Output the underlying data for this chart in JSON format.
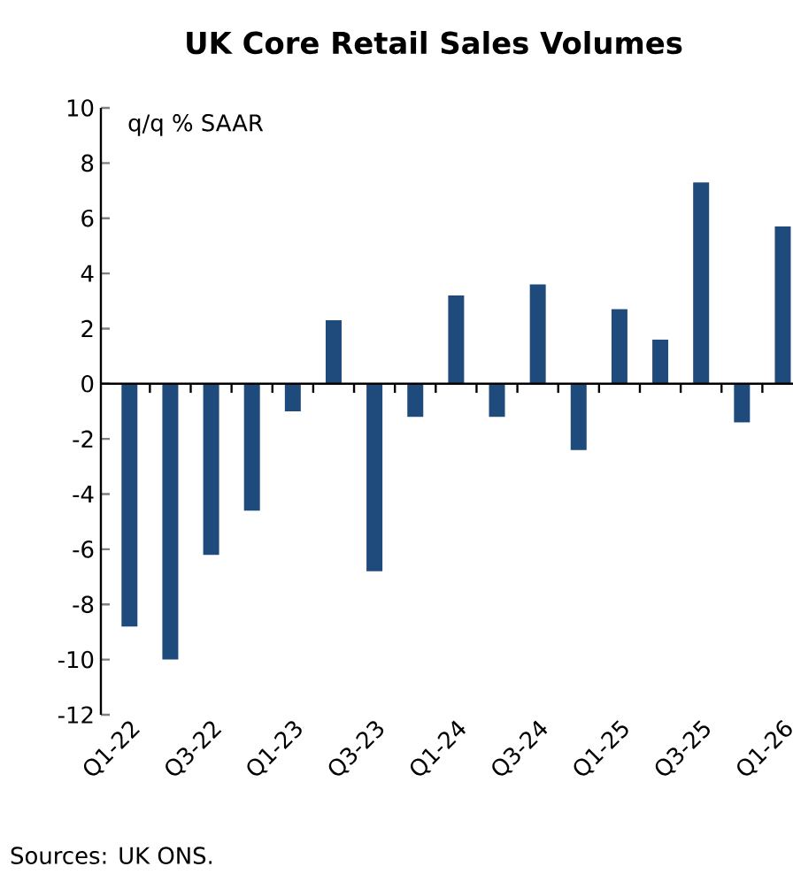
{
  "chart_data": {
    "type": "bar",
    "title": "UK Core Retail Sales Volumes",
    "ylabel": "q/q % SAAR",
    "categories": [
      "Q1-22",
      null,
      "Q3-22",
      null,
      "Q1-23",
      null,
      "Q3-23",
      null,
      "Q1-24",
      null,
      "Q3-24",
      null,
      "Q1-25",
      null,
      "Q3-25",
      null,
      "Q1-26"
    ],
    "values": [
      -8.8,
      -10.0,
      -6.2,
      -4.6,
      -1.0,
      2.3,
      -6.8,
      -1.2,
      3.2,
      -1.2,
      3.6,
      -2.4,
      2.7,
      1.6,
      7.3,
      -1.4,
      5.7
    ],
    "color": "#1f4a7c",
    "ylim": [
      -12,
      10
    ],
    "yticks": [
      -12,
      -10,
      -8,
      -6,
      -4,
      -2,
      0,
      2,
      4,
      6,
      8,
      10
    ],
    "annotations": [
      "Sources: UK ONS."
    ]
  }
}
